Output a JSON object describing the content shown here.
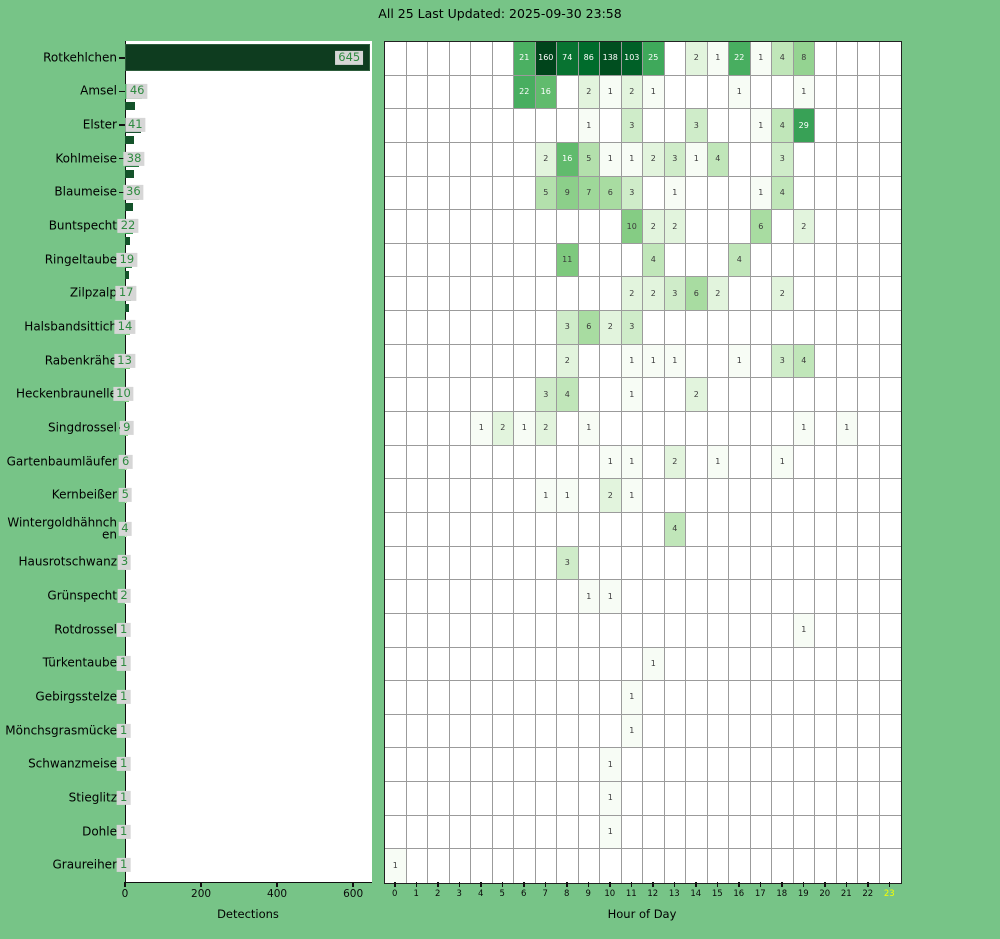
{
  "title": "All 25 Last Updated: 2025-09-30 23:58",
  "colors": {
    "background": "#77c487",
    "chip_bg": "#d6d6d6",
    "chip_text": "#2e8b40",
    "bar_shadow": "#14532a",
    "current_hour_label": "#f5ff00",
    "tick_label": "#0a0a0a",
    "cell_text_dark": "#3a3a3a",
    "cell_text_light": "#ffffff",
    "colormap_greens": [
      "#f7fcf5",
      "#e5f5e0",
      "#c7e9c0",
      "#a1d99b",
      "#74c476",
      "#41ab5d",
      "#238b45",
      "#006d2c",
      "#00441b"
    ]
  },
  "chart_data": [
    {
      "type": "bar",
      "orientation": "horizontal",
      "xlabel": "Detections",
      "xticks": [
        0,
        200,
        400,
        600
      ],
      "xlim": [
        0,
        647
      ],
      "categories": [
        "Rotkehlchen",
        "Amsel",
        "Elster",
        "Kohlmeise",
        "Blaumeise",
        "Buntspecht",
        "Ringeltaube",
        "Zilpzalp",
        "Halsbandsittich",
        "Rabenkrähe",
        "Heckenbraunelle",
        "Singdrossel",
        "Gartenbaumläufer",
        "Kernbeißer",
        "Wintergoldhähnchen",
        "Hausrotschwanz",
        "Grünspecht",
        "Rotdrossel",
        "Türkentaube",
        "Gebirgsstelze",
        "Mönchsgrasmücke",
        "Schwanzmeise",
        "Stieglitz",
        "Dohle",
        "Graureiher"
      ],
      "values": [
        645,
        46,
        41,
        38,
        36,
        22,
        19,
        17,
        14,
        13,
        10,
        9,
        6,
        5,
        4,
        3,
        2,
        1,
        1,
        1,
        1,
        1,
        1,
        1,
        1
      ],
      "bar_colors": [
        "#0e3c1f",
        "#4aa85f",
        "#1a5130",
        "#27793f",
        "#2a7d42",
        "#3f9e57",
        "#2d8648",
        "#1d6434",
        "#87cd86",
        "#81ca81",
        "#88ce87",
        "#90d18d",
        "#abdda4",
        "#b4e1ad",
        "#c0e6b9",
        "#ccebc6",
        "#e2f3dd",
        "#f7fcf5",
        "#f7fcf5",
        "#f7fcf5",
        "#f7fcf5",
        "#f7fcf5",
        "#f7fcf5",
        "#f7fcf5",
        "#f7fcf5"
      ]
    },
    {
      "type": "heatmap",
      "xlabel": "Hour of Day",
      "hours": [
        0,
        1,
        2,
        3,
        4,
        5,
        6,
        7,
        8,
        9,
        10,
        11,
        12,
        13,
        14,
        15,
        16,
        17,
        18,
        19,
        20,
        21,
        22,
        23
      ],
      "highlighted_hour": 23,
      "colormap": "Greens",
      "normalization": "log",
      "vmax": 160,
      "rows": [
        {
          "species": "Rotkehlchen",
          "values": {
            "6": 21,
            "7": 160,
            "8": 74,
            "9": 86,
            "10": 138,
            "11": 103,
            "12": 25,
            "14": 2,
            "15": 1,
            "16": 22,
            "17": 1,
            "18": 4,
            "19": 8
          }
        },
        {
          "species": "Amsel",
          "values": {
            "6": 22,
            "7": 16,
            "9": 2,
            "10": 1,
            "11": 2,
            "12": 1,
            "16": 1,
            "19": 1
          }
        },
        {
          "species": "Elster",
          "values": {
            "9": 1,
            "11": 3,
            "14": 3,
            "17": 1,
            "18": 4,
            "19": 29
          }
        },
        {
          "species": "Kohlmeise",
          "values": {
            "7": 2,
            "8": 16,
            "9": 5,
            "10": 1,
            "11": 1,
            "12": 2,
            "13": 3,
            "14": 1,
            "15": 4,
            "18": 3
          }
        },
        {
          "species": "Blaumeise",
          "values": {
            "7": 5,
            "8": 9,
            "9": 7,
            "10": 6,
            "11": 3,
            "13": 1,
            "17": 1,
            "18": 4
          }
        },
        {
          "species": "Buntspecht",
          "values": {
            "11": 10,
            "12": 2,
            "13": 2,
            "17": 6,
            "19": 2
          }
        },
        {
          "species": "Ringeltaube",
          "values": {
            "8": 11,
            "12": 4,
            "16": 4
          }
        },
        {
          "species": "Zilpzalp",
          "values": {
            "11": 2,
            "12": 2,
            "13": 3,
            "14": 6,
            "15": 2,
            "18": 2
          }
        },
        {
          "species": "Halsbandsittich",
          "values": {
            "8": 3,
            "9": 6,
            "10": 2,
            "11": 3
          }
        },
        {
          "species": "Rabenkrähe",
          "values": {
            "8": 2,
            "11": 1,
            "12": 1,
            "13": 1,
            "16": 1,
            "18": 3,
            "19": 4
          }
        },
        {
          "species": "Heckenbraunelle",
          "values": {
            "7": 3,
            "8": 4,
            "11": 1,
            "14": 2
          }
        },
        {
          "species": "Singdrossel",
          "values": {
            "4": 1,
            "5": 2,
            "6": 1,
            "7": 2,
            "9": 1,
            "19": 1,
            "21": 1
          }
        },
        {
          "species": "Gartenbaumläufer",
          "values": {
            "10": 1,
            "11": 1,
            "13": 2,
            "15": 1,
            "18": 1
          }
        },
        {
          "species": "Kernbeißer",
          "values": {
            "7": 1,
            "8": 1,
            "10": 2,
            "11": 1
          }
        },
        {
          "species": "Wintergoldhähnchen",
          "values": {
            "13": 4
          }
        },
        {
          "species": "Hausrotschwanz",
          "values": {
            "8": 3
          }
        },
        {
          "species": "Grünspecht",
          "values": {
            "9": 1,
            "10": 1
          }
        },
        {
          "species": "Rotdrossel",
          "values": {
            "19": 1
          }
        },
        {
          "species": "Türkentaube",
          "values": {
            "12": 1
          }
        },
        {
          "species": "Gebirgsstelze",
          "values": {
            "11": 1
          }
        },
        {
          "species": "Mönchsgrasmücke",
          "values": {
            "11": 1
          }
        },
        {
          "species": "Schwanzmeise",
          "values": {
            "10": 1
          }
        },
        {
          "species": "Stieglitz",
          "values": {
            "10": 1
          }
        },
        {
          "species": "Dohle",
          "values": {
            "10": 1
          }
        },
        {
          "species": "Graureiher",
          "values": {
            "0": 1
          }
        }
      ]
    }
  ]
}
